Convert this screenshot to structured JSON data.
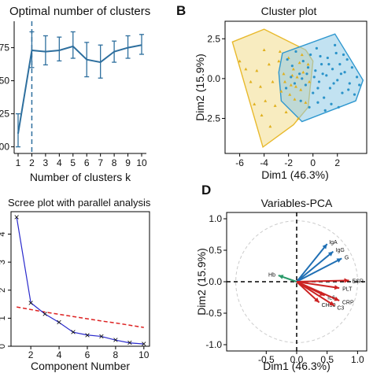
{
  "chart_data": [
    {
      "type": "line",
      "title": "Optimal number of clusters",
      "xlabel": "Number of clusters k",
      "ylabel": "",
      "x": [
        1,
        2,
        3,
        4,
        5,
        6,
        7,
        8,
        9,
        10
      ],
      "values": [
        0.1,
        0.73,
        0.72,
        0.73,
        0.76,
        0.66,
        0.64,
        0.72,
        0.75,
        0.77
      ],
      "err_low": [
        0.0,
        0.6,
        0.62,
        0.65,
        0.67,
        0.53,
        0.52,
        0.64,
        0.67,
        0.7
      ],
      "err_high": [
        0.25,
        0.87,
        0.84,
        0.83,
        0.87,
        0.79,
        0.77,
        0.8,
        0.84,
        0.85
      ],
      "xticks": [
        "1",
        "2",
        "3",
        "4",
        "5",
        "6",
        "7",
        "8",
        "9",
        "10"
      ],
      "yticks": [
        ".75",
        ".50",
        ".25",
        ".00"
      ],
      "ytick_values": [
        0.75,
        0.5,
        0.25,
        0.0
      ],
      "ylim": [
        -0.05,
        0.95
      ],
      "optimal_k": 2,
      "colors": {
        "line": "#2e6f9e"
      }
    },
    {
      "type": "scatter",
      "panel_label": "B",
      "title": "Cluster plot",
      "xlabel": "Dim1 (46.3%)",
      "ylabel": "Dim2 (15.9%)",
      "xlim": [
        -7.2,
        4.4
      ],
      "ylim": [
        -4.7,
        3.6
      ],
      "xticks": [
        "-6",
        "-4",
        "-2",
        "0",
        "2"
      ],
      "xtick_values": [
        -6,
        -4,
        -2,
        0,
        2
      ],
      "yticks": [
        "2.5",
        "0.0",
        "-2.5"
      ],
      "ytick_values": [
        2.5,
        0.0,
        -2.5
      ],
      "hulls": [
        {
          "cluster": "1",
          "color": "#e8b92c",
          "fill": "#f3dc8c",
          "points": [
            [
              -6.6,
              2.3
            ],
            [
              -4.0,
              3.1
            ],
            [
              -0.6,
              1.8
            ],
            [
              0.0,
              1.1
            ],
            [
              -0.4,
              -1.8
            ],
            [
              -1.6,
              -2.9
            ],
            [
              -4.1,
              -4.3
            ]
          ]
        },
        {
          "cluster": "2",
          "color": "#2e97cf",
          "fill": "#8fcbe6",
          "points": [
            [
              -2.5,
              1.6
            ],
            [
              1.8,
              2.8
            ],
            [
              3.0,
              1.3
            ],
            [
              4.1,
              -0.1
            ],
            [
              3.5,
              -1.4
            ],
            [
              -0.9,
              -2.7
            ],
            [
              -2.6,
              -1.4
            ],
            [
              -2.8,
              0.4
            ]
          ]
        }
      ],
      "cluster_points": [
        {
          "cluster": "1",
          "marker": "triangle",
          "color": "#e0b01e",
          "points": [
            [
              -6.0,
              1.1
            ],
            [
              -5.5,
              0.6
            ],
            [
              -5.1,
              -0.2
            ],
            [
              -4.6,
              0.5
            ],
            [
              -4.3,
              -0.5
            ],
            [
              -4.0,
              1.8
            ],
            [
              -4.8,
              -1.6
            ],
            [
              -4.2,
              -2.3
            ],
            [
              -3.9,
              -1.4
            ],
            [
              -3.6,
              0.9
            ],
            [
              -3.3,
              -0.2
            ],
            [
              -3.1,
              -1.7
            ],
            [
              -2.8,
              1.1
            ],
            [
              -2.6,
              -0.8
            ],
            [
              -2.4,
              0.3
            ],
            [
              -2.2,
              -2.1
            ],
            [
              -2.0,
              1.3
            ],
            [
              -1.8,
              -0.4
            ],
            [
              -1.6,
              0.6
            ],
            [
              -1.5,
              -1.3
            ],
            [
              -1.3,
              0.1
            ],
            [
              -1.1,
              1.0
            ],
            [
              -1.0,
              -0.7
            ],
            [
              -0.8,
              0.4
            ],
            [
              -0.6,
              -1.5
            ],
            [
              -0.4,
              0.9
            ],
            [
              -0.3,
              -0.2
            ],
            [
              -1.9,
              -1.0
            ],
            [
              -2.7,
              1.7
            ],
            [
              -3.5,
              -3.0
            ],
            [
              -1.2,
              -2.5
            ],
            [
              -0.9,
              1.5
            ],
            [
              -2.3,
              -0.2
            ],
            [
              -1.7,
              0.2
            ],
            [
              -1.4,
              -0.5
            ]
          ]
        },
        {
          "cluster": "2",
          "marker": "circle",
          "color": "#2b93c9",
          "points": [
            [
              -2.1,
              1.2
            ],
            [
              -1.7,
              0.8
            ],
            [
              -1.4,
              1.7
            ],
            [
              -1.1,
              0.3
            ],
            [
              -0.8,
              1.1
            ],
            [
              -0.6,
              -0.4
            ],
            [
              -0.4,
              0.7
            ],
            [
              -0.2,
              1.5
            ],
            [
              0.0,
              -0.9
            ],
            [
              0.2,
              0.5
            ],
            [
              0.3,
              1.9
            ],
            [
              0.5,
              -0.2
            ],
            [
              0.7,
              0.9
            ],
            [
              0.9,
              -1.2
            ],
            [
              1.1,
              0.2
            ],
            [
              1.2,
              1.3
            ],
            [
              1.4,
              -0.6
            ],
            [
              1.6,
              0.6
            ],
            [
              1.8,
              2.1
            ],
            [
              2.0,
              -0.1
            ],
            [
              2.2,
              0.9
            ],
            [
              2.4,
              -0.9
            ],
            [
              2.6,
              0.4
            ],
            [
              2.8,
              1.2
            ],
            [
              3.0,
              -0.3
            ],
            [
              3.2,
              0.7
            ],
            [
              3.4,
              -1.0
            ],
            [
              3.6,
              0.1
            ],
            [
              3.8,
              -0.4
            ],
            [
              -1.0,
              -1.4
            ],
            [
              -0.3,
              -1.8
            ],
            [
              0.4,
              -1.5
            ],
            [
              1.0,
              -2.0
            ],
            [
              1.5,
              -1.6
            ],
            [
              2.1,
              -1.8
            ],
            [
              -1.5,
              -0.3
            ],
            [
              -0.9,
              0.0
            ],
            [
              0.1,
              0.1
            ],
            [
              0.6,
              1.4
            ],
            [
              1.3,
              0.9
            ],
            [
              1.9,
              1.6
            ],
            [
              2.5,
              1.5
            ],
            [
              -2.2,
              -0.6
            ],
            [
              -1.8,
              0.1
            ],
            [
              0.8,
              0.3
            ],
            [
              1.7,
              -0.3
            ],
            [
              2.3,
              0.3
            ],
            [
              2.9,
              -0.7
            ],
            [
              -0.5,
              0.3
            ],
            [
              0.4,
              -0.6
            ]
          ]
        }
      ]
    },
    {
      "type": "line",
      "title": "Scree plot with parallel analysis",
      "xlabel": "Component Number",
      "ylabel": "",
      "x": [
        1,
        2,
        3,
        4,
        5,
        6,
        7,
        8,
        9,
        10
      ],
      "values": [
        4.6,
        1.55,
        1.15,
        0.85,
        0.5,
        0.4,
        0.35,
        0.22,
        0.12,
        0.08
      ],
      "parallel": [
        1.4,
        1.31,
        1.22,
        1.14,
        1.06,
        0.98,
        0.9,
        0.83,
        0.75,
        0.67
      ],
      "xticks": [
        "2",
        "4",
        "6",
        "8",
        "10"
      ],
      "xtick_values": [
        2,
        4,
        6,
        8,
        10
      ],
      "yticks": [
        "0",
        "1",
        "2",
        "3",
        "4"
      ],
      "ytick_values": [
        0,
        1,
        2,
        3,
        4
      ],
      "ylim": [
        0,
        4.8
      ],
      "xlim": [
        0.6,
        10.4
      ],
      "colors": {
        "series": "#2a2acc",
        "parallel": "#dd2222"
      }
    },
    {
      "type": "scatter",
      "panel_label": "D",
      "title": "Variables-PCA",
      "xlabel": "Dim1 (46.3%)",
      "ylabel": "Dim2 (15.9%)",
      "xlim": [
        -1.15,
        1.15
      ],
      "ylim": [
        -1.1,
        1.1
      ],
      "xticks": [
        "-0.5",
        "0.0",
        "0.5",
        "1.0"
      ],
      "xtick_values": [
        -0.5,
        0.0,
        0.5,
        1.0
      ],
      "yticks": [
        "1.0",
        "0.5",
        "0.0",
        "-0.5",
        "-1.0"
      ],
      "ytick_values": [
        1.0,
        0.5,
        0.0,
        -0.5,
        -1.0
      ],
      "arrows": [
        {
          "label": "IgA",
          "x": 0.5,
          "y": 0.6,
          "color": "#1f6fb4"
        },
        {
          "label": "IgG",
          "x": 0.6,
          "y": 0.48,
          "color": "#1f6fb4"
        },
        {
          "label": "G",
          "x": 0.74,
          "y": 0.37,
          "color": "#1f6fb4"
        },
        {
          "label": "Hb",
          "x": -0.3,
          "y": 0.1,
          "color": "#2a9a6a"
        },
        {
          "label": "ESR",
          "x": 0.86,
          "y": 0.02,
          "color": "#cc2222"
        },
        {
          "label": "PLT",
          "x": 0.7,
          "y": -0.1,
          "color": "#cc2222"
        },
        {
          "label": "IL6",
          "x": 0.46,
          "y": -0.22,
          "color": "#cc2222"
        },
        {
          "label": "CRP",
          "x": 0.7,
          "y": -0.3,
          "color": "#cc2222"
        },
        {
          "label": "CH50",
          "x": 0.37,
          "y": -0.33,
          "color": "#cc2222"
        },
        {
          "label": "C3",
          "x": 0.62,
          "y": -0.38,
          "color": "#cc2222"
        }
      ]
    }
  ]
}
